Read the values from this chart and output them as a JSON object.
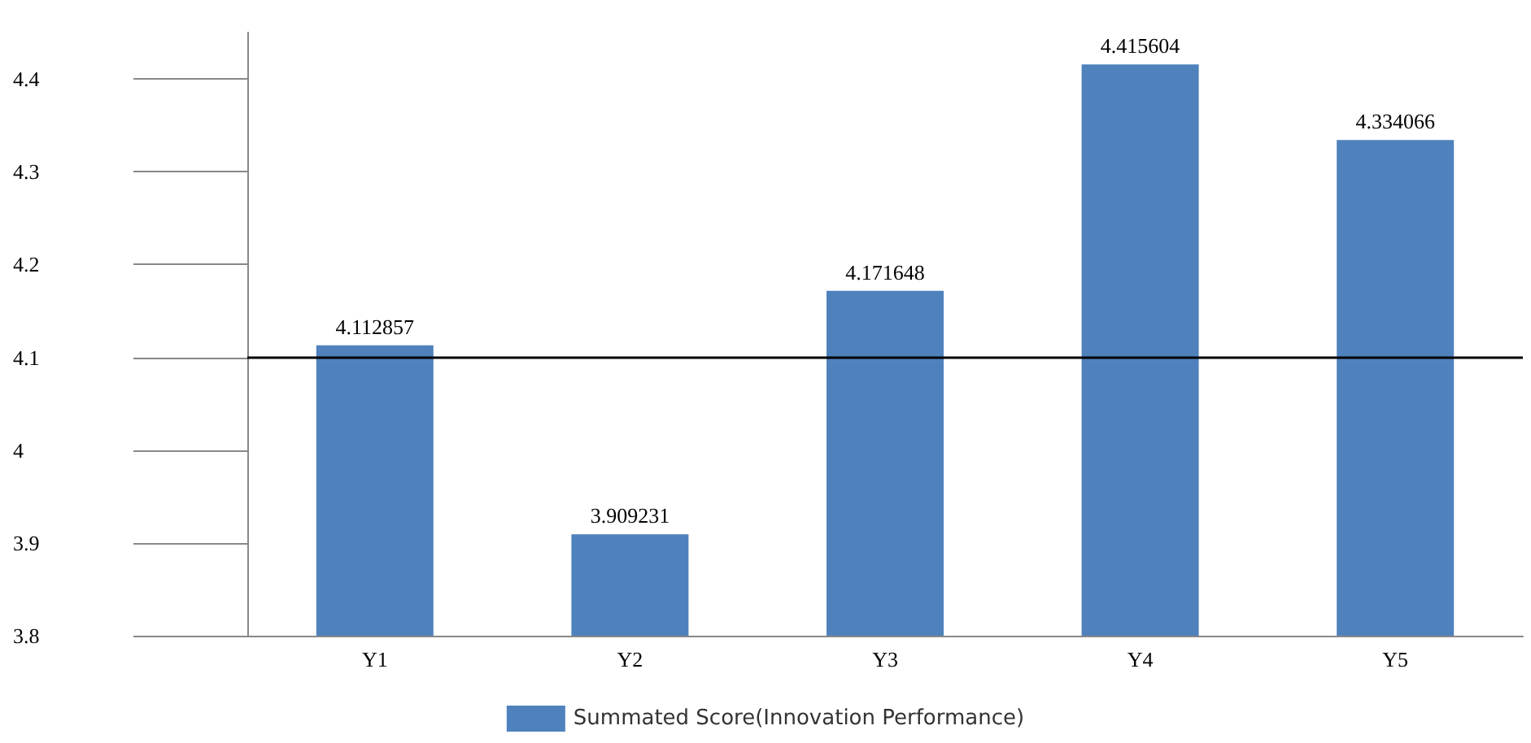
{
  "chart_data": {
    "type": "bar",
    "categories": [
      "Y1",
      "Y2",
      "Y3",
      "Y4",
      "Y5"
    ],
    "series": [
      {
        "name": "Summated Score(Innovation Performance)",
        "color": "#4f81bd",
        "values": [
          4.112857,
          3.909231,
          4.171648,
          4.415604,
          4.334066
        ]
      }
    ],
    "ylim": [
      3.8,
      4.45
    ],
    "yticks": [
      3.8,
      3.9,
      4,
      4.1,
      4.2,
      4.3,
      4.4
    ],
    "ref_lines": [
      {
        "axis": "y",
        "value": 4.1,
        "color": "#000000"
      }
    ],
    "data_labels": true,
    "grid": false,
    "legend": "bottom"
  }
}
